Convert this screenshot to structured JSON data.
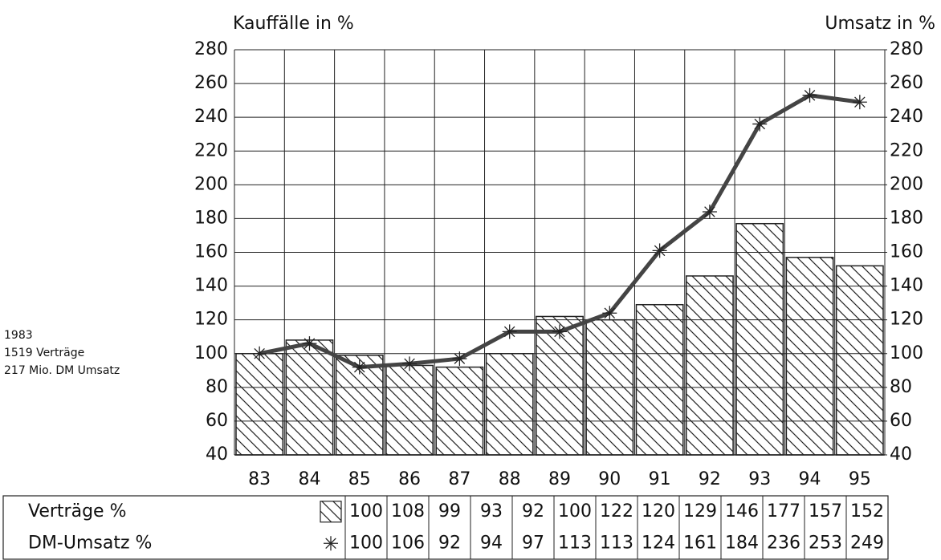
{
  "chart_data": {
    "type": "bar_line",
    "y_label": "Kauffälle in %",
    "y2_label": "Umsatz in %",
    "annotations": [
      "1983",
      "1519 Verträge",
      "217 Mio. DM Umsatz"
    ],
    "categories": [
      "83",
      "84",
      "85",
      "86",
      "87",
      "88",
      "89",
      "90",
      "91",
      "92",
      "93",
      "94",
      "95"
    ],
    "series": [
      {
        "name": "Verträge %",
        "type": "bar",
        "color": "#222222",
        "values": [
          100,
          108,
          99,
          93,
          92,
          100,
          122,
          120,
          129,
          146,
          177,
          157,
          152
        ]
      },
      {
        "name": "DM-Umsatz %",
        "type": "line",
        "axis": "y2",
        "color": "#444444",
        "values": [
          100,
          106,
          92,
          94,
          97,
          113,
          113,
          124,
          161,
          184,
          236,
          253,
          249
        ]
      }
    ],
    "ylim": [
      40,
      280
    ],
    "yticks": [
      40,
      60,
      80,
      100,
      120,
      140,
      160,
      180,
      200,
      220,
      240,
      260,
      280
    ],
    "y2lim": [
      40,
      280
    ],
    "y2ticks": [
      40,
      60,
      80,
      100,
      120,
      140,
      160,
      180,
      200,
      220,
      240,
      260,
      280
    ],
    "grid": true
  }
}
